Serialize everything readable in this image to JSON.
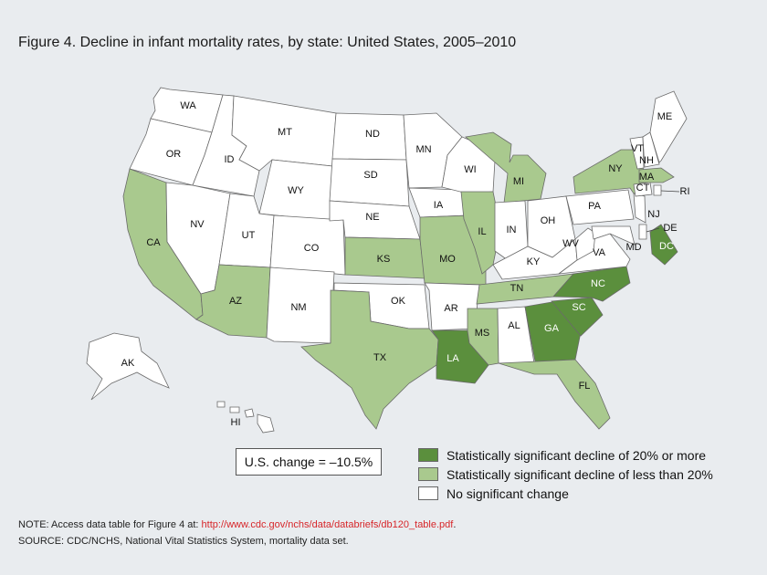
{
  "title": "Figure 4. Decline in infant mortality rates, by state: United States, 2005–2010",
  "categories": {
    "significant_20_or_more": {
      "label": "Statistically significant decline of 20% or more",
      "color": "#5b8f3d"
    },
    "significant_less_20": {
      "label": "Statistically significant decline of less than 20%",
      "color": "#a9c98e"
    },
    "no_change": {
      "label": "No significant change",
      "color": "#ffffff"
    }
  },
  "states": [
    {
      "code": "WA",
      "category": "no_change"
    },
    {
      "code": "OR",
      "category": "no_change"
    },
    {
      "code": "CA",
      "category": "significant_less_20"
    },
    {
      "code": "NV",
      "category": "no_change"
    },
    {
      "code": "ID",
      "category": "no_change"
    },
    {
      "code": "MT",
      "category": "no_change"
    },
    {
      "code": "WY",
      "category": "no_change"
    },
    {
      "code": "UT",
      "category": "no_change"
    },
    {
      "code": "AZ",
      "category": "significant_less_20"
    },
    {
      "code": "CO",
      "category": "no_change"
    },
    {
      "code": "NM",
      "category": "no_change"
    },
    {
      "code": "ND",
      "category": "no_change"
    },
    {
      "code": "SD",
      "category": "no_change"
    },
    {
      "code": "NE",
      "category": "no_change"
    },
    {
      "code": "KS",
      "category": "significant_less_20"
    },
    {
      "code": "OK",
      "category": "no_change"
    },
    {
      "code": "TX",
      "category": "significant_less_20"
    },
    {
      "code": "MN",
      "category": "no_change"
    },
    {
      "code": "IA",
      "category": "no_change"
    },
    {
      "code": "MO",
      "category": "significant_less_20"
    },
    {
      "code": "AR",
      "category": "no_change"
    },
    {
      "code": "LA",
      "category": "significant_20_or_more"
    },
    {
      "code": "WI",
      "category": "no_change"
    },
    {
      "code": "IL",
      "category": "significant_less_20"
    },
    {
      "code": "MI",
      "category": "significant_less_20"
    },
    {
      "code": "IN",
      "category": "no_change"
    },
    {
      "code": "OH",
      "category": "no_change"
    },
    {
      "code": "KY",
      "category": "no_change"
    },
    {
      "code": "TN",
      "category": "significant_less_20"
    },
    {
      "code": "MS",
      "category": "significant_less_20"
    },
    {
      "code": "AL",
      "category": "no_change"
    },
    {
      "code": "GA",
      "category": "significant_20_or_more"
    },
    {
      "code": "FL",
      "category": "significant_less_20"
    },
    {
      "code": "SC",
      "category": "significant_20_or_more"
    },
    {
      "code": "NC",
      "category": "significant_20_or_more"
    },
    {
      "code": "VA",
      "category": "no_change"
    },
    {
      "code": "WV",
      "category": "no_change"
    },
    {
      "code": "MD",
      "category": "no_change"
    },
    {
      "code": "DE",
      "category": "no_change"
    },
    {
      "code": "DC",
      "category": "significant_20_or_more"
    },
    {
      "code": "PA",
      "category": "no_change"
    },
    {
      "code": "NJ",
      "category": "no_change"
    },
    {
      "code": "NY",
      "category": "significant_less_20"
    },
    {
      "code": "CT",
      "category": "no_change"
    },
    {
      "code": "RI",
      "category": "no_change"
    },
    {
      "code": "MA",
      "category": "significant_less_20"
    },
    {
      "code": "VT",
      "category": "no_change"
    },
    {
      "code": "NH",
      "category": "no_change"
    },
    {
      "code": "ME",
      "category": "no_change"
    },
    {
      "code": "AK",
      "category": "no_change"
    },
    {
      "code": "HI",
      "category": "no_change"
    }
  ],
  "us_change": "U.S. change = –10.5%",
  "note_prefix": "NOTE: Access data table for Figure 4 at: ",
  "note_link": "http://www.cdc.gov/nchs/data/databriefs/db120_table.pdf",
  "note_suffix": ".",
  "source": "SOURCE: CDC/NCHS, National Vital Statistics System, mortality data set."
}
